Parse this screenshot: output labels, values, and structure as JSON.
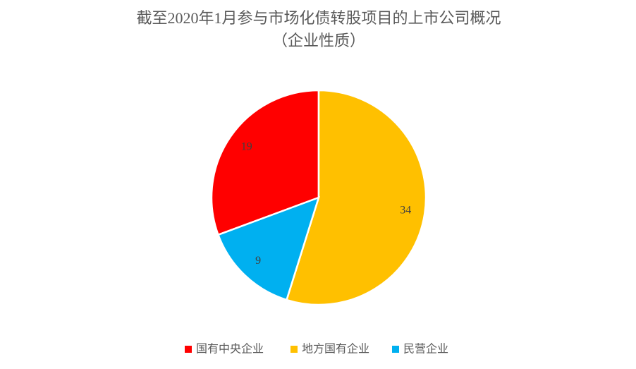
{
  "chart_data": {
    "type": "pie",
    "title": "截至2020年1月参与市场化债转股项目的上市公司概况",
    "subtitle": "（企业性质）",
    "categories": [
      "国有中央企业",
      "地方国有企业",
      "民营企业"
    ],
    "values": [
      19,
      34,
      9
    ],
    "colors": [
      "#ff0000",
      "#ffc000",
      "#00b0f0"
    ],
    "legend": "bottom"
  }
}
